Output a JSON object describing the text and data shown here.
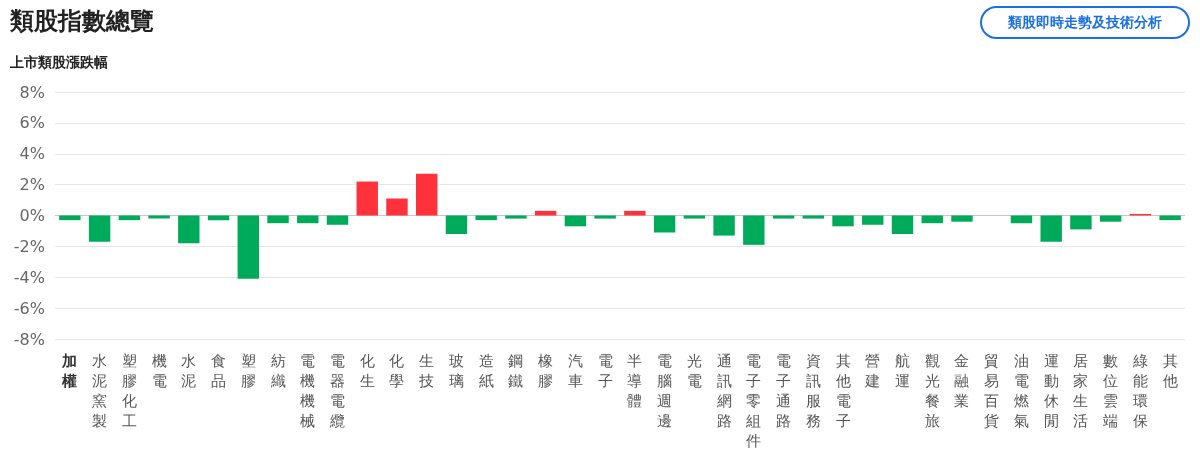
{
  "chart_data": {
    "type": "bar",
    "title": "類股指數總覽",
    "subtitle": "上市類股漲跌幅",
    "annotations": [
      "類股即時走勢及技術分析"
    ],
    "categories": [
      "加權",
      "水泥窯製",
      "塑膠化工",
      "機電",
      "水泥",
      "食品",
      "塑膠",
      "紡織",
      "電機機械",
      "電器電纜",
      "化生",
      "化學",
      "生技",
      "玻璃",
      "造紙",
      "鋼鐵",
      "橡膠",
      "汽車",
      "電子",
      "半導體",
      "電腦週邊",
      "光電",
      "通訊網路",
      "電子零組件",
      "電子通路",
      "資訊服務",
      "其他電子",
      "營建",
      "航運",
      "觀光餐旅",
      "金融業",
      "貿易百貨",
      "油電燃氣",
      "運動休閒",
      "居家生活",
      "數位雲端",
      "綠能環保",
      "其他"
    ],
    "values": [
      -0.3,
      -1.7,
      -0.3,
      -0.2,
      -1.8,
      -0.3,
      -4.1,
      -0.5,
      -0.5,
      -0.6,
      2.2,
      1.1,
      2.7,
      -1.2,
      -0.3,
      -0.2,
      0.3,
      -0.7,
      -0.2,
      0.3,
      -1.1,
      -0.2,
      -1.3,
      -1.9,
      -0.2,
      -0.2,
      -0.7,
      -0.6,
      -1.2,
      -0.5,
      -0.4,
      0,
      -0.5,
      -1.7,
      -0.9,
      -0.4,
      0.1,
      -0.3
    ],
    "colors": [
      "#00aa5b",
      "#00aa5b",
      "#00aa5b",
      "#00aa5b",
      "#00aa5b",
      "#00aa5b",
      "#00aa5b",
      "#00aa5b",
      "#00aa5b",
      "#00aa5b",
      "#ff313b",
      "#ff313b",
      "#ff313b",
      "#00aa5b",
      "#00aa5b",
      "#00aa5b",
      "#ff313b",
      "#00aa5b",
      "#00aa5b",
      "#ff313b",
      "#00aa5b",
      "#00aa5b",
      "#00aa5b",
      "#00aa5b",
      "#00aa5b",
      "#00aa5b",
      "#00aa5b",
      "#00aa5b",
      "#00aa5b",
      "#00aa5b",
      "#00aa5b",
      "#00aa5b",
      "#00aa5b",
      "#00aa5b",
      "#00aa5b",
      "#00aa5b",
      "#ff313b",
      "#00aa5b"
    ],
    "ylim": [
      -8,
      8
    ],
    "yticks": [
      {
        "value": -8,
        "label": "-8%"
      },
      {
        "value": -6,
        "label": "-6%"
      },
      {
        "value": -4,
        "label": "-4%"
      },
      {
        "value": -2,
        "label": "-2%"
      },
      {
        "value": 0,
        "label": "0%"
      },
      {
        "value": 2,
        "label": "2%"
      },
      {
        "value": 4,
        "label": "4%"
      },
      {
        "value": 6,
        "label": "6%"
      },
      {
        "value": 8,
        "label": "8%"
      }
    ],
    "grid": "y"
  }
}
